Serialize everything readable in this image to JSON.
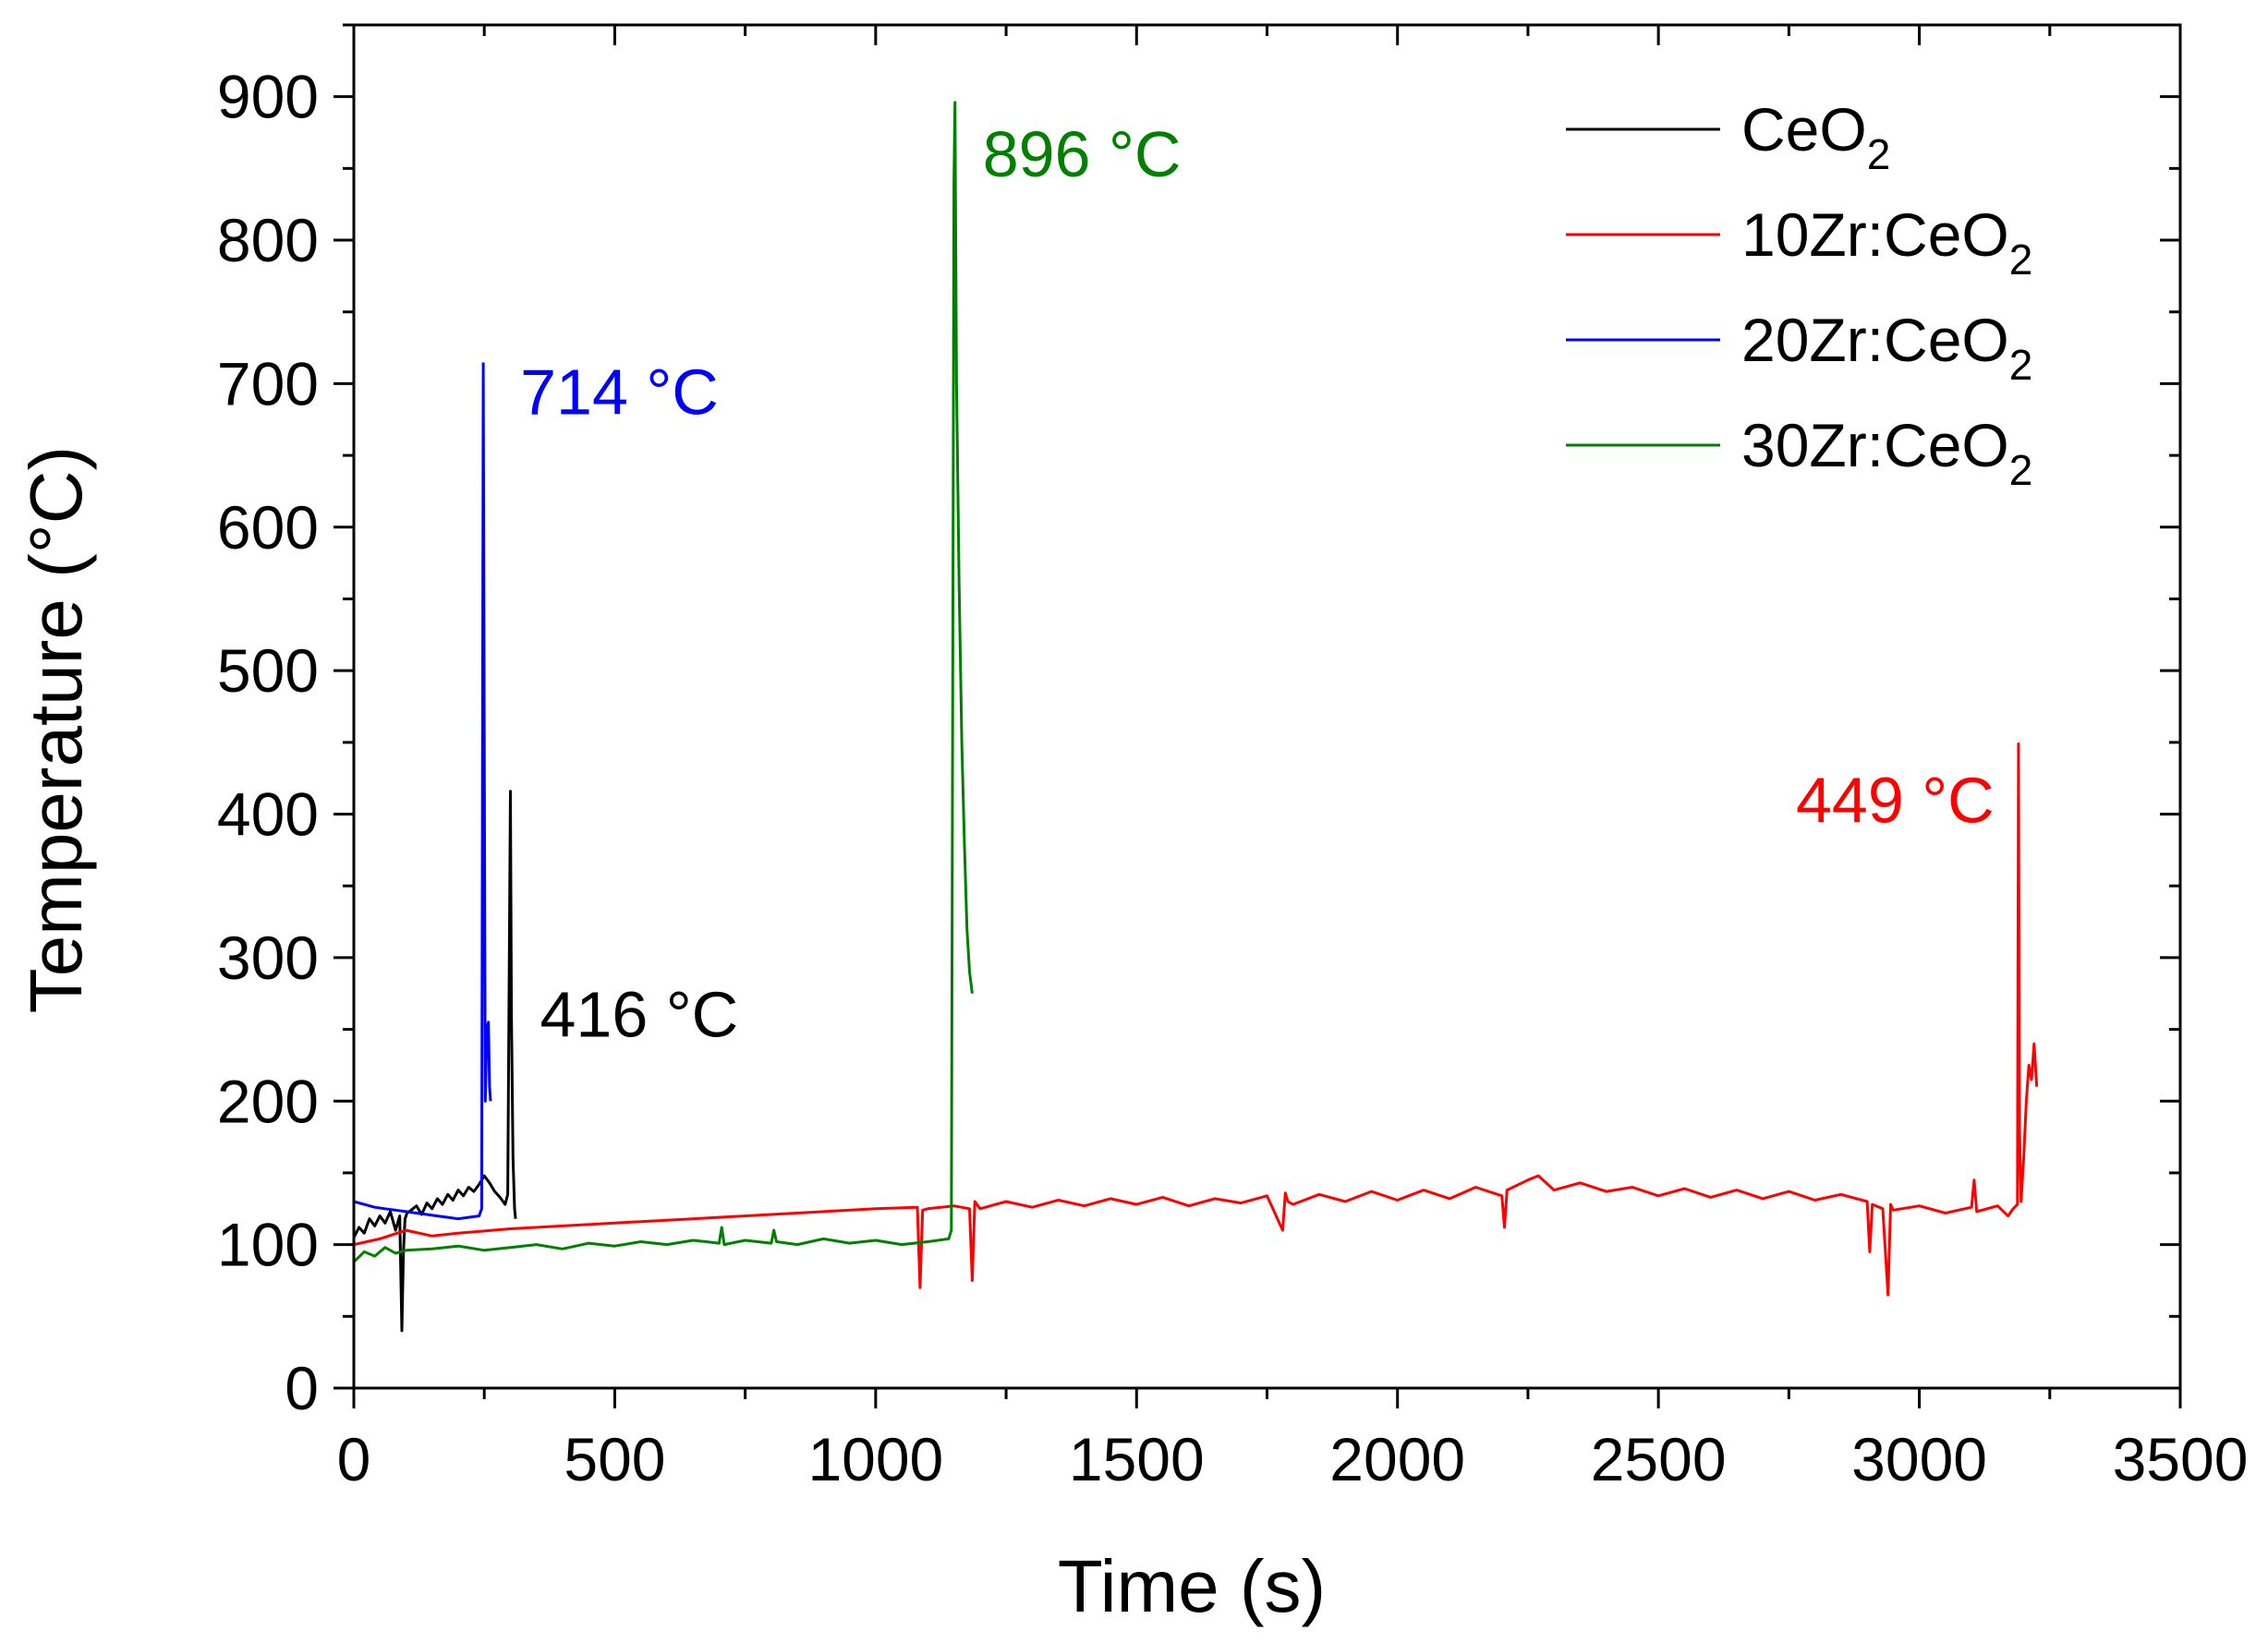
{
  "chart_data": {
    "type": "line",
    "title": "",
    "xlabel": "Time (s)",
    "ylabel": "Temperature (°C)",
    "xlim": [
      0,
      3500
    ],
    "ylim": [
      0,
      950
    ],
    "xticks": [
      0,
      500,
      1000,
      1500,
      2000,
      2500,
      3000,
      3500
    ],
    "yticks": [
      0,
      100,
      200,
      300,
      400,
      500,
      600,
      700,
      800,
      900
    ],
    "xtick_labels": [
      "0",
      "500",
      "1000",
      "1500",
      "2000",
      "2500",
      "3000",
      "3500"
    ],
    "ytick_labels": [
      "0",
      "100",
      "200",
      "300",
      "400",
      "500",
      "600",
      "700",
      "800",
      "900"
    ],
    "legend_position": "top-right",
    "series": [
      {
        "name": "CeO2",
        "label_main": "CeO",
        "label_sub": "2",
        "color": "#000000",
        "x": [
          0,
          10,
          20,
          30,
          40,
          50,
          60,
          70,
          80,
          88,
          92,
          95,
          98,
          102,
          110,
          120,
          130,
          140,
          150,
          160,
          170,
          180,
          190,
          200,
          210,
          220,
          230,
          240,
          250,
          260,
          270,
          280,
          290,
          295,
          298,
          300,
          302,
          305,
          308,
          310
        ],
        "y": [
          105,
          112,
          108,
          118,
          113,
          120,
          115,
          123,
          110,
          120,
          40,
          95,
          118,
          122,
          124,
          127,
          121,
          129,
          125,
          132,
          128,
          135,
          131,
          138,
          134,
          140,
          137,
          142,
          148,
          143,
          137,
          133,
          128,
          135,
          300,
          416,
          260,
          160,
          125,
          118
        ]
      },
      {
        "name": "10Zr:CeO2",
        "label_main": "10Zr:CeO",
        "label_sub": "2",
        "color": "#ff0000",
        "x": [
          0,
          50,
          100,
          150,
          200,
          300,
          400,
          500,
          600,
          700,
          800,
          900,
          1000,
          1080,
          1085,
          1090,
          1100,
          1150,
          1180,
          1185,
          1190,
          1200,
          1250,
          1300,
          1350,
          1400,
          1450,
          1500,
          1550,
          1600,
          1650,
          1700,
          1750,
          1780,
          1785,
          1790,
          1800,
          1850,
          1900,
          1950,
          2000,
          2050,
          2100,
          2150,
          2200,
          2205,
          2210,
          2250,
          2270,
          2300,
          2350,
          2400,
          2450,
          2500,
          2550,
          2600,
          2650,
          2700,
          2750,
          2800,
          2850,
          2900,
          2905,
          2910,
          2930,
          2940,
          2945,
          2950,
          3000,
          3050,
          3100,
          3105,
          3110,
          3150,
          3170,
          3180,
          3188,
          3190,
          3192,
          3195,
          3200,
          3205,
          3210,
          3215,
          3220,
          3225
        ],
        "y": [
          100,
          104,
          110,
          106,
          108,
          111,
          113,
          115,
          117,
          119,
          121,
          123,
          125,
          126,
          70,
          124,
          125,
          127,
          125,
          75,
          130,
          125,
          130,
          126,
          131,
          127,
          132,
          128,
          133,
          127,
          132,
          129,
          134,
          110,
          136,
          130,
          128,
          135,
          130,
          137,
          131,
          138,
          132,
          140,
          134,
          112,
          138,
          145,
          148,
          138,
          143,
          137,
          140,
          134,
          139,
          133,
          138,
          132,
          137,
          131,
          135,
          130,
          95,
          128,
          125,
          65,
          128,
          124,
          127,
          122,
          126,
          145,
          123,
          127,
          120,
          125,
          128,
          449,
          180,
          130,
          160,
          200,
          225,
          215,
          240,
          210
        ]
      },
      {
        "name": "20Zr:CeO2",
        "label_main": "20Zr:CeO",
        "label_sub": "2",
        "color": "#0000ff",
        "x": [
          0,
          20,
          40,
          60,
          80,
          100,
          120,
          140,
          160,
          180,
          200,
          220,
          240,
          245,
          248,
          250,
          252,
          255,
          258,
          260,
          262
        ],
        "y": [
          130,
          128,
          126,
          125,
          124,
          123,
          122,
          121,
          120,
          119,
          118,
          119,
          120,
          125,
          714,
          450,
          200,
          250,
          255,
          210,
          200
        ]
      },
      {
        "name": "30Zr:CeO2",
        "label_main": "30Zr:CeO",
        "label_sub": "2",
        "color": "#008000",
        "x": [
          0,
          20,
          40,
          60,
          80,
          100,
          150,
          200,
          250,
          300,
          350,
          400,
          450,
          500,
          550,
          600,
          650,
          700,
          705,
          710,
          750,
          800,
          805,
          810,
          850,
          900,
          950,
          1000,
          1050,
          1100,
          1140,
          1145,
          1148,
          1150,
          1152,
          1155,
          1160,
          1165,
          1170,
          1175,
          1180,
          1185
        ],
        "y": [
          88,
          95,
          92,
          98,
          94,
          96,
          97,
          99,
          96,
          98,
          100,
          97,
          101,
          99,
          102,
          100,
          103,
          101,
          112,
          100,
          103,
          101,
          110,
          102,
          100,
          104,
          101,
          103,
          100,
          102,
          104,
          110,
          545,
          840,
          896,
          700,
          560,
          450,
          380,
          320,
          290,
          275
        ]
      }
    ],
    "annotations": [
      {
        "text": "416 °C",
        "color": "#000000",
        "series": "CeO2",
        "x": 300,
        "y": 416
      },
      {
        "text": "714 °C",
        "color": "#0000ff",
        "series": "20Zr:CeO2",
        "x": 248,
        "y": 714
      },
      {
        "text": "896 °C",
        "color": "#008000",
        "series": "30Zr:CeO2",
        "x": 1152,
        "y": 896
      },
      {
        "text": "449 °C",
        "color": "#ff0000",
        "series": "10Zr:CeO2",
        "x": 3188,
        "y": 449
      }
    ]
  }
}
